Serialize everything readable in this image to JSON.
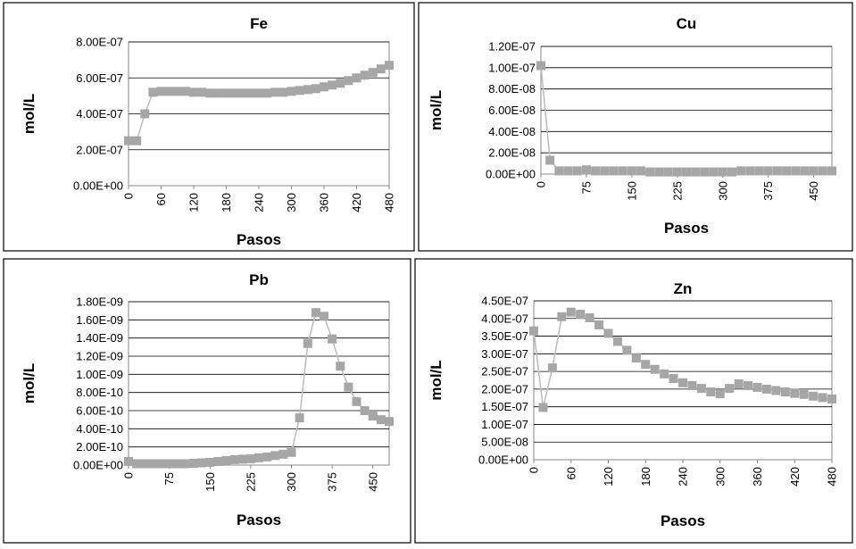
{
  "chart_data": [
    {
      "id": "fe",
      "type": "line",
      "title": "Fe",
      "xlabel": "Pasos",
      "ylabel": "mol/L",
      "xlim": [
        0,
        480
      ],
      "ylim": [
        0,
        8e-07
      ],
      "xticks": [
        0,
        60,
        120,
        180,
        240,
        300,
        360,
        420,
        480
      ],
      "yticks": [
        0,
        2e-07,
        4e-07,
        6e-07,
        8e-07
      ],
      "ytick_labels": [
        "0.00E+00",
        "2.00E-07",
        "4.00E-07",
        "6.00E-07",
        "8.00E-07"
      ],
      "x": [
        0,
        15,
        30,
        45,
        60,
        75,
        90,
        105,
        120,
        135,
        150,
        165,
        180,
        195,
        210,
        225,
        240,
        255,
        270,
        285,
        300,
        315,
        330,
        345,
        360,
        375,
        390,
        405,
        420,
        435,
        450,
        465,
        480
      ],
      "y": [
        2.5e-07,
        2.5e-07,
        4e-07,
        5.2e-07,
        5.25e-07,
        5.25e-07,
        5.25e-07,
        5.25e-07,
        5.2e-07,
        5.2e-07,
        5.15e-07,
        5.15e-07,
        5.15e-07,
        5.15e-07,
        5.15e-07,
        5.15e-07,
        5.15e-07,
        5.15e-07,
        5.2e-07,
        5.2e-07,
        5.25e-07,
        5.3e-07,
        5.35e-07,
        5.4e-07,
        5.5e-07,
        5.6e-07,
        5.7e-07,
        5.85e-07,
        6e-07,
        6.15e-07,
        6.3e-07,
        6.5e-07,
        6.7e-07
      ]
    },
    {
      "id": "cu",
      "type": "line",
      "title": "Cu",
      "xlabel": "Pasos",
      "ylabel": "mol/L",
      "xlim": [
        0,
        480
      ],
      "ylim": [
        0,
        1.2e-07
      ],
      "xticks": [
        0,
        75,
        150,
        225,
        300,
        375,
        450
      ],
      "yticks": [
        0,
        2e-08,
        4e-08,
        6e-08,
        8e-08,
        1e-07,
        1.2e-07
      ],
      "ytick_labels": [
        "0.00E+00",
        "2.00E-08",
        "4.00E-08",
        "6.00E-08",
        "8.00E-08",
        "1.00E-07",
        "1.20E-07"
      ],
      "x": [
        0,
        15,
        30,
        45,
        60,
        75,
        90,
        105,
        120,
        135,
        150,
        165,
        180,
        195,
        210,
        225,
        240,
        255,
        270,
        285,
        300,
        315,
        330,
        345,
        360,
        375,
        390,
        405,
        420,
        435,
        450,
        465,
        480
      ],
      "y": [
        1.02e-07,
        1.3e-08,
        3e-09,
        3e-09,
        3e-09,
        4e-09,
        3e-09,
        3e-09,
        3e-09,
        3e-09,
        3e-09,
        3e-09,
        2e-09,
        2e-09,
        2e-09,
        2e-09,
        2e-09,
        2e-09,
        2e-09,
        2e-09,
        2e-09,
        2e-09,
        3e-09,
        3e-09,
        3e-09,
        3e-09,
        3e-09,
        3e-09,
        3e-09,
        3e-09,
        3e-09,
        3e-09,
        3e-09
      ]
    },
    {
      "id": "pb",
      "type": "line",
      "title": "Pb",
      "xlabel": "Pasos",
      "ylabel": "mol/L",
      "xlim": [
        0,
        480
      ],
      "ylim": [
        0,
        1.8e-09
      ],
      "xticks": [
        0,
        75,
        150,
        225,
        300,
        375,
        450
      ],
      "yticks": [
        0,
        2e-10,
        4e-10,
        6e-10,
        8e-10,
        1e-09,
        1.2e-09,
        1.4e-09,
        1.6e-09,
        1.8e-09
      ],
      "ytick_labels": [
        "0.00E+00",
        "2.00E-10",
        "4.00E-10",
        "6.00E-10",
        "8.00E-10",
        "1.00E-09",
        "1.20E-09",
        "1.40E-09",
        "1.60E-09",
        "1.80E-09"
      ],
      "x": [
        0,
        15,
        30,
        45,
        60,
        75,
        90,
        105,
        120,
        135,
        150,
        165,
        180,
        195,
        210,
        225,
        240,
        255,
        270,
        285,
        300,
        315,
        330,
        345,
        360,
        375,
        390,
        405,
        420,
        435,
        450,
        465,
        480
      ],
      "y": [
        4e-11,
        1.5e-11,
        1.5e-11,
        1.5e-11,
        1.5e-11,
        1.5e-11,
        1.5e-11,
        1.5e-11,
        2e-11,
        2.5e-11,
        3e-11,
        4e-11,
        5e-11,
        6e-11,
        6.5e-11,
        7e-11,
        8e-11,
        9e-11,
        1.05e-10,
        1.2e-10,
        1.4e-10,
        5.2e-10,
        1.34e-09,
        1.68e-09,
        1.64e-09,
        1.39e-09,
        1.09e-09,
        8.6e-10,
        7e-10,
        6e-10,
        5.4e-10,
        5e-10,
        4.8e-10
      ]
    },
    {
      "id": "zn",
      "type": "line",
      "title": "Zn",
      "xlabel": "Pasos",
      "ylabel": "mol/L",
      "xlim": [
        0,
        480
      ],
      "ylim": [
        0,
        4.5e-07
      ],
      "xticks": [
        0,
        60,
        120,
        180,
        240,
        300,
        360,
        420,
        480
      ],
      "yticks": [
        0,
        5e-08,
        1e-07,
        1.5e-07,
        2e-07,
        2.5e-07,
        3e-07,
        3.5e-07,
        4e-07,
        4.5e-07
      ],
      "ytick_labels": [
        "0.00E+00",
        "5.00E-08",
        "1.00E-07",
        "1.50E-07",
        "2.00E-07",
        "2.50E-07",
        "3.00E-07",
        "3.50E-07",
        "4.00E-07",
        "4.50E-07"
      ],
      "x": [
        0,
        15,
        30,
        45,
        60,
        75,
        90,
        105,
        120,
        135,
        150,
        165,
        180,
        195,
        210,
        225,
        240,
        255,
        270,
        285,
        300,
        315,
        330,
        345,
        360,
        375,
        390,
        405,
        420,
        435,
        450,
        465,
        480
      ],
      "y": [
        3.65e-07,
        1.48e-07,
        2.6e-07,
        4.05e-07,
        4.18e-07,
        4.12e-07,
        4.02e-07,
        3.82e-07,
        3.58e-07,
        3.35e-07,
        3.1e-07,
        2.88e-07,
        2.7e-07,
        2.56e-07,
        2.43e-07,
        2.3e-07,
        2.18e-07,
        2.1e-07,
        2.02e-07,
        1.92e-07,
        1.87e-07,
        2.02e-07,
        2.15e-07,
        2.1e-07,
        2.05e-07,
        2e-07,
        1.96e-07,
        1.92e-07,
        1.88e-07,
        1.85e-07,
        1.8e-07,
        1.76e-07,
        1.72e-07
      ]
    }
  ]
}
